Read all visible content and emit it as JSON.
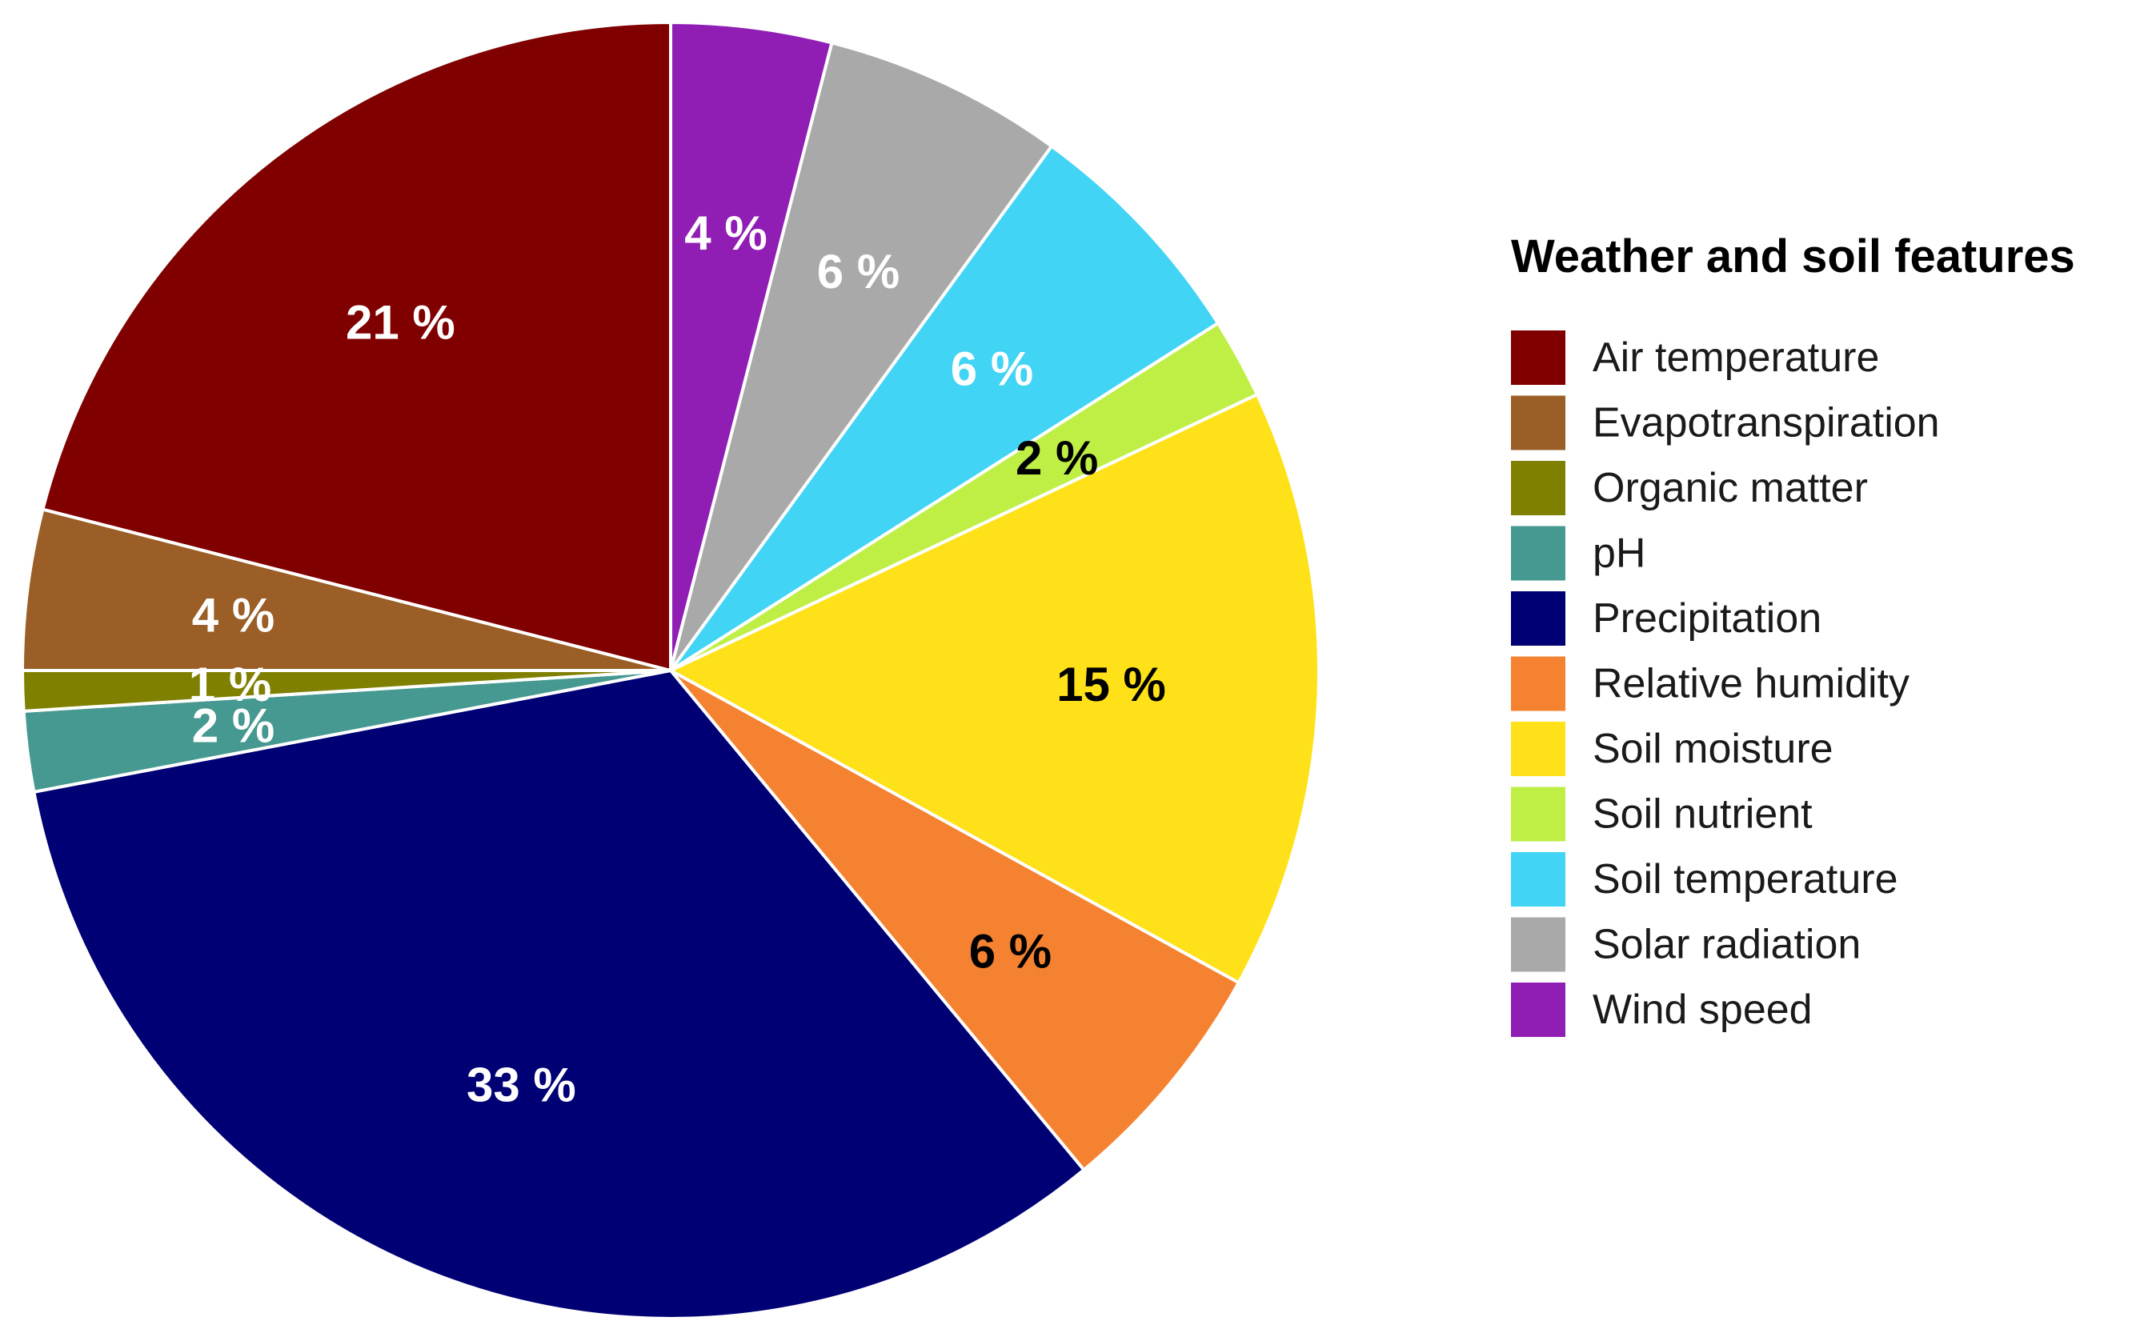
{
  "chart_data": {
    "type": "pie",
    "legend_title": "Weather and soil features",
    "legend_position": "right",
    "slices": [
      {
        "name": "Air temperature",
        "value": 21,
        "label": "21 %",
        "color": "#800000",
        "label_color": "#ffffff"
      },
      {
        "name": "Evapotranspiration",
        "value": 4,
        "label": "4 %",
        "color": "#9A5E26",
        "label_color": "#ffffff"
      },
      {
        "name": "Organic matter",
        "value": 1,
        "label": "1 %",
        "color": "#808000",
        "label_color": "#ffffff"
      },
      {
        "name": "pH",
        "value": 2,
        "label": "2 %",
        "color": "#469990",
        "label_color": "#ffffff"
      },
      {
        "name": "Precipitation",
        "value": 33,
        "label": "33 %",
        "color": "#000075",
        "label_color": "#ffffff"
      },
      {
        "name": "Relative humidity",
        "value": 6,
        "label": "6 %",
        "color": "#F58231",
        "label_color": "#000000"
      },
      {
        "name": "Soil moisture",
        "value": 15,
        "label": "15 %",
        "color": "#FFE119",
        "label_color": "#000000"
      },
      {
        "name": "Soil nutrient",
        "value": 2,
        "label": "2 %",
        "color": "#BFEF45",
        "label_color": "#000000"
      },
      {
        "name": "Soil temperature",
        "value": 6,
        "label": "6 %",
        "color": "#42D4F4",
        "label_color": "#ffffff"
      },
      {
        "name": "Solar radiation",
        "value": 6,
        "label": "6 %",
        "color": "#A9A9A9",
        "label_color": "#ffffff"
      },
      {
        "name": "Wind speed",
        "value": 4,
        "label": "4 %",
        "color": "#911EB4",
        "label_color": "#ffffff"
      }
    ]
  }
}
